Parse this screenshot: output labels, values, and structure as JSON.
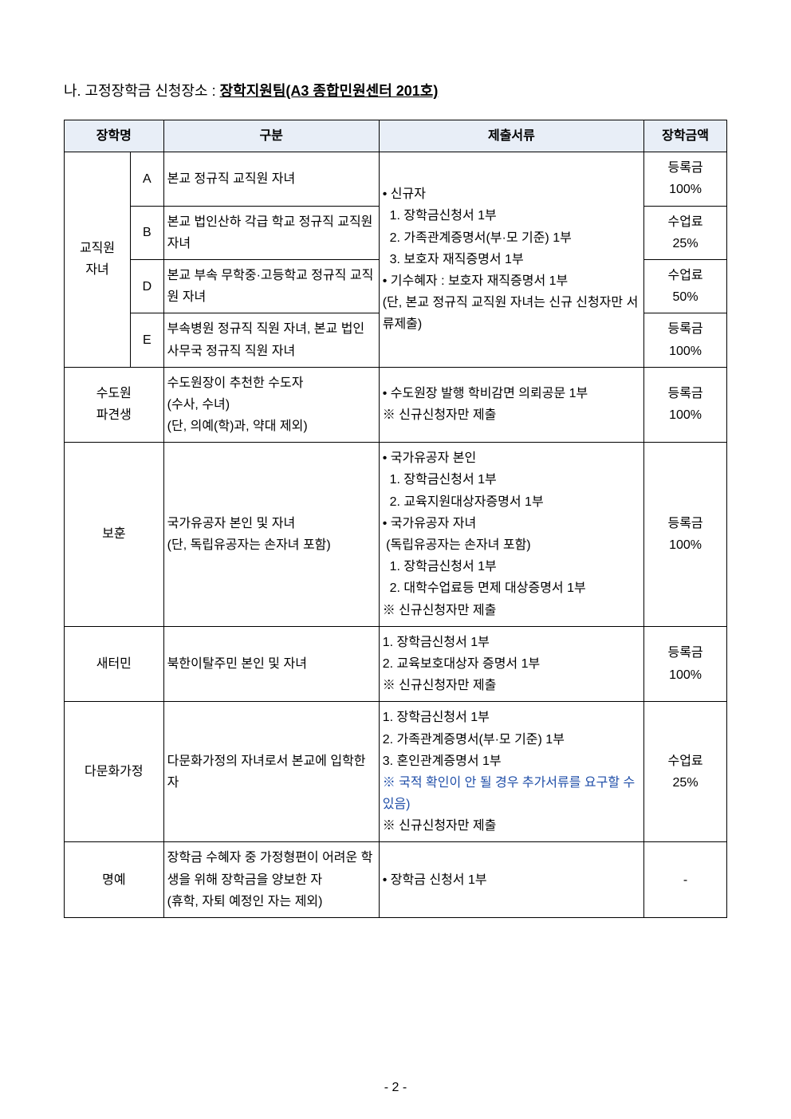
{
  "page": {
    "heading_prefix": "나. 고정장학금 신청장소 : ",
    "heading_bold": "장학지원팀(A3 종합민원센터 201호)",
    "pagenum": "- 2 -"
  },
  "headers": {
    "name": "장학명",
    "category": "구분",
    "docs": "제출서류",
    "amount": "장학금액"
  },
  "rows": {
    "staff_group": "교직원\n자녀",
    "staff_A_sub": "A",
    "staff_A_desc": "본교 정규직 교직원 자녀",
    "staff_A_amt": "등록금\n100%",
    "staff_B_sub": "B",
    "staff_B_desc": "본교 법인산하 각급 학교 정규직 교직원 자녀",
    "staff_B_amt": "수업료\n25%",
    "staff_D_sub": "D",
    "staff_D_desc": "본교 부속 무학중·고등학교 정규직 교직원 자녀",
    "staff_D_amt": "수업료\n50%",
    "staff_E_sub": "E",
    "staff_E_desc": "부속병원 정규직 직원 자녀, 본교 법인사무국 정규직 직원 자녀",
    "staff_E_amt": "등록금\n100%",
    "staff_docs": "• 신규자\n  1. 장학금신청서 1부\n  2. 가족관계증명서(부·모 기준) 1부\n  3. 보호자 재직증명서 1부\n• 기수혜자 : 보호자 재직증명서 1부\n(단, 본교 정규직 교직원 자녀는 신규 신청자만 서류제출)",
    "monk_name": "수도원\n파견생",
    "monk_desc": "수도원장이 추천한 수도자\n(수사, 수녀)\n(단, 의예(학)과, 약대 제외)",
    "monk_docs": "• 수도원장 발행 학비감면 의뢰공문 1부\n※ 신규신청자만 제출",
    "monk_amt": "등록금\n100%",
    "vet_name": "보훈",
    "vet_desc": "국가유공자 본인 및 자녀\n(단, 독립유공자는 손자녀 포함)",
    "vet_docs": "• 국가유공자 본인\n  1. 장학금신청서 1부\n  2. 교육지원대상자증명서 1부\n• 국가유공자 자녀\n (독립유공자는 손자녀 포함)\n  1. 장학금신청서 1부\n  2. 대학수업료등 면제 대상증명서 1부\n※ 신규신청자만 제출",
    "vet_amt": "등록금\n100%",
    "nk_name": "새터민",
    "nk_desc": "북한이탈주민 본인 및 자녀",
    "nk_docs": "1. 장학금신청서 1부\n2. 교육보호대상자 증명서 1부\n※ 신규신청자만 제출",
    "nk_amt": "등록금\n100%",
    "multi_name": "다문화가정",
    "multi_desc": "다문화가정의 자녀로서 본교에 입학한 자",
    "multi_docs_1": "1. 장학금신청서 1부\n2. 가족관계증명서(부·모 기준) 1부\n3. 혼인관계증명서 1부",
    "multi_docs_note": "※ 국적 확인이 안 될 경우 추가서류를 요구할 수 있음)",
    "multi_docs_2": "※ 신규신청자만 제출",
    "multi_amt": "수업료\n25%",
    "honor_name": "명예",
    "honor_desc": "장학금 수혜자 중 가정형편이 어려운 학생을 위해 장학금을 양보한 자\n(휴학, 자퇴 예정인 자는 제외)",
    "honor_docs": "• 장학금 신청서 1부",
    "honor_amt": "-"
  },
  "style": {
    "header_bg": "#e8eef7",
    "border_color": "#000000",
    "note_color": "#1f4ea8",
    "font_size_body": 16,
    "font_size_title": 18
  }
}
